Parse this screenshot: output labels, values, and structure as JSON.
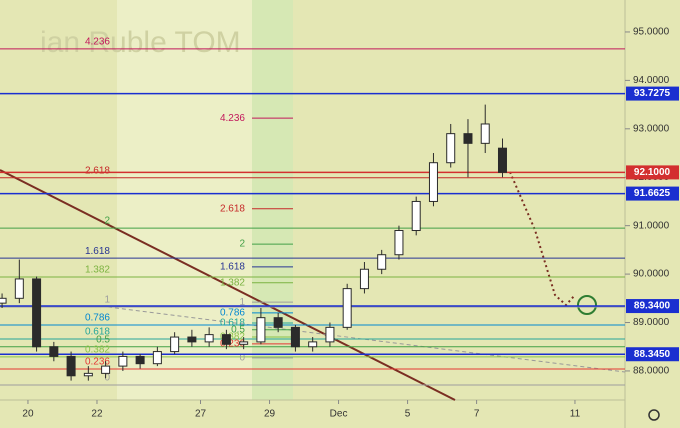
{
  "chart_data": {
    "type": "candlestick",
    "watermark": "ian Ruble TOM",
    "x": [
      -0.75,
      -0.25,
      0.25,
      0.75,
      1.25,
      1.75,
      2.25,
      2.75,
      3.25,
      3.75,
      4.25,
      4.75,
      5.25,
      5.75,
      6.25,
      6.75,
      7.25,
      7.75,
      8.25,
      8.75,
      9.25,
      9.75,
      10.25,
      10.75,
      11.25,
      11.75,
      12.25,
      12.75,
      13.25,
      13.75
    ],
    "open": [
      89.4,
      89.5,
      89.9,
      88.5,
      88.3,
      87.9,
      87.95,
      88.1,
      88.3,
      88.15,
      88.4,
      88.7,
      88.6,
      88.75,
      88.55,
      88.6,
      89.1,
      88.9,
      88.5,
      88.6,
      88.9,
      89.7,
      90.1,
      90.4,
      90.9,
      91.5,
      92.3,
      92.9,
      92.7,
      92.6
    ],
    "high": [
      89.6,
      90.3,
      89.95,
      88.6,
      88.4,
      88.1,
      88.2,
      88.4,
      88.35,
      88.5,
      88.8,
      88.85,
      88.9,
      88.85,
      88.7,
      89.3,
      89.2,
      88.95,
      88.7,
      89.0,
      89.8,
      90.25,
      90.5,
      91.0,
      91.6,
      92.5,
      93.1,
      93.2,
      93.5,
      92.8
    ],
    "low": [
      89.3,
      89.4,
      88.4,
      88.2,
      87.8,
      87.8,
      87.85,
      88.0,
      88.05,
      88.1,
      88.35,
      88.5,
      88.5,
      88.45,
      88.45,
      88.55,
      88.8,
      88.4,
      88.4,
      88.5,
      88.85,
      89.6,
      90.0,
      90.3,
      90.8,
      91.4,
      92.2,
      92.0,
      92.5,
      92.0
    ],
    "close": [
      89.5,
      89.9,
      88.5,
      88.3,
      87.9,
      87.95,
      88.1,
      88.3,
      88.15,
      88.4,
      88.7,
      88.6,
      88.75,
      88.55,
      88.6,
      89.1,
      88.9,
      88.5,
      88.6,
      88.9,
      89.7,
      90.1,
      90.4,
      90.9,
      91.5,
      92.3,
      92.9,
      92.7,
      93.1,
      92.1
    ],
    "up_color": "#ffffff",
    "down_color": "#2b2b2b",
    "xlim": [
      -0.81,
      17.3
    ],
    "xticks": [
      {
        "value": 0,
        "label": "20"
      },
      {
        "value": 2,
        "label": "22"
      },
      {
        "value": 5,
        "label": "27"
      },
      {
        "value": 7,
        "label": "29"
      },
      {
        "value": 9,
        "label": "Dec"
      },
      {
        "value": 11,
        "label": "5"
      },
      {
        "value": 13,
        "label": "7"
      },
      {
        "value": 15.85,
        "label": "11"
      }
    ],
    "ylim": [
      87.4,
      95.66
    ],
    "yticks": [
      {
        "value": 88,
        "label": "88.0000"
      },
      {
        "value": 89,
        "label": "89.0000"
      },
      {
        "value": 90,
        "label": "90.0000"
      },
      {
        "value": 91,
        "label": "91.0000"
      },
      {
        "value": 92,
        "label": "92.0000"
      },
      {
        "value": 93,
        "label": "93.0000"
      },
      {
        "value": 94,
        "label": "94.0000"
      },
      {
        "value": 95,
        "label": "95.0000"
      }
    ],
    "price_lines": [
      {
        "value": 93.7275,
        "label": "93.7275",
        "color": "#1a2fd0"
      },
      {
        "value": 92.1,
        "label": "92.1000",
        "color": "#d32f2f"
      },
      {
        "value": 91.6625,
        "label": "91.6625",
        "color": "#1a2fd0"
      },
      {
        "value": 89.34,
        "label": "89.3400",
        "color": "#1a2fd0"
      },
      {
        "value": 88.345,
        "label": "88.3450",
        "color": "#1a2fd0"
      }
    ],
    "fib_left": [
      {
        "value": 94.65,
        "label": "4.236",
        "color": "#c2185b"
      },
      {
        "value": 91.99,
        "label": "2.618",
        "color": "#c62828"
      },
      {
        "value": 90.95,
        "label": "2",
        "color": "#43a047"
      },
      {
        "value": 90.33,
        "label": "1.618",
        "color": "#283593"
      },
      {
        "value": 89.94,
        "label": "1.382",
        "color": "#7cb342"
      },
      {
        "value": 89.32,
        "label": "1",
        "color": "#9e9e9e"
      },
      {
        "value": 88.95,
        "label": "0.786",
        "color": "#0288d1"
      },
      {
        "value": 88.66,
        "label": "0.618",
        "color": "#26a69a"
      },
      {
        "value": 88.5,
        "label": "0.5",
        "color": "#43a047"
      },
      {
        "value": 88.29,
        "label": "0.382",
        "color": "#8bc34a"
      },
      {
        "value": 88.04,
        "label": "0.236",
        "color": "#e53935"
      },
      {
        "value": 87.71,
        "label": "0",
        "color": "#9e9e9e"
      }
    ],
    "fib_right": [
      {
        "value": 93.22,
        "label": "4.236",
        "color": "#c2185b"
      },
      {
        "value": 91.35,
        "label": "2.618",
        "color": "#c62828"
      },
      {
        "value": 90.62,
        "label": "2",
        "color": "#43a047"
      },
      {
        "value": 90.15,
        "label": "1.618",
        "color": "#283593"
      },
      {
        "value": 89.82,
        "label": "1.382",
        "color": "#7cb342"
      },
      {
        "value": 89.42,
        "label": "1",
        "color": "#9e9e9e"
      },
      {
        "value": 89.2,
        "label": "0.786",
        "color": "#0288d1"
      },
      {
        "value": 88.99,
        "label": "0.618",
        "color": "#26a69a"
      },
      {
        "value": 88.85,
        "label": "0.5",
        "color": "#43a047"
      },
      {
        "value": 88.7,
        "label": "0.382",
        "color": "#8bc34a"
      },
      {
        "value": 88.56,
        "label": "0.236",
        "color": "#e53935"
      },
      {
        "value": 88.27,
        "label": "0",
        "color": "#9e9e9e"
      }
    ]
  }
}
